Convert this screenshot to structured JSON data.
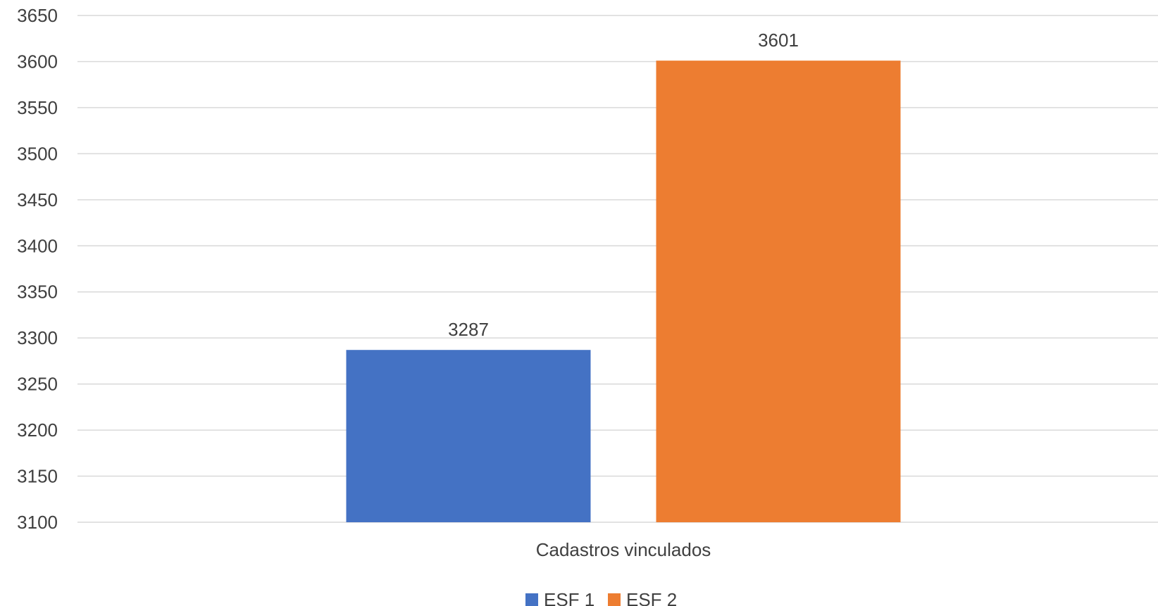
{
  "chart_data": {
    "type": "bar",
    "categories": [
      "Cadastros vinculados"
    ],
    "series": [
      {
        "name": "ESF 1",
        "values": [
          3287
        ],
        "color": "#4472c4"
      },
      {
        "name": "ESF 2",
        "values": [
          3601
        ],
        "color": "#ed7d31"
      }
    ],
    "ylim": [
      3100,
      3650
    ],
    "ytick_step": 50,
    "yticks": [
      "3100",
      "3150",
      "3200",
      "3250",
      "3300",
      "3350",
      "3400",
      "3450",
      "3500",
      "3550",
      "3600",
      "3650"
    ],
    "data_labels": [
      "3287",
      "3601"
    ],
    "grid": true,
    "legend_position": "bottom-center"
  }
}
